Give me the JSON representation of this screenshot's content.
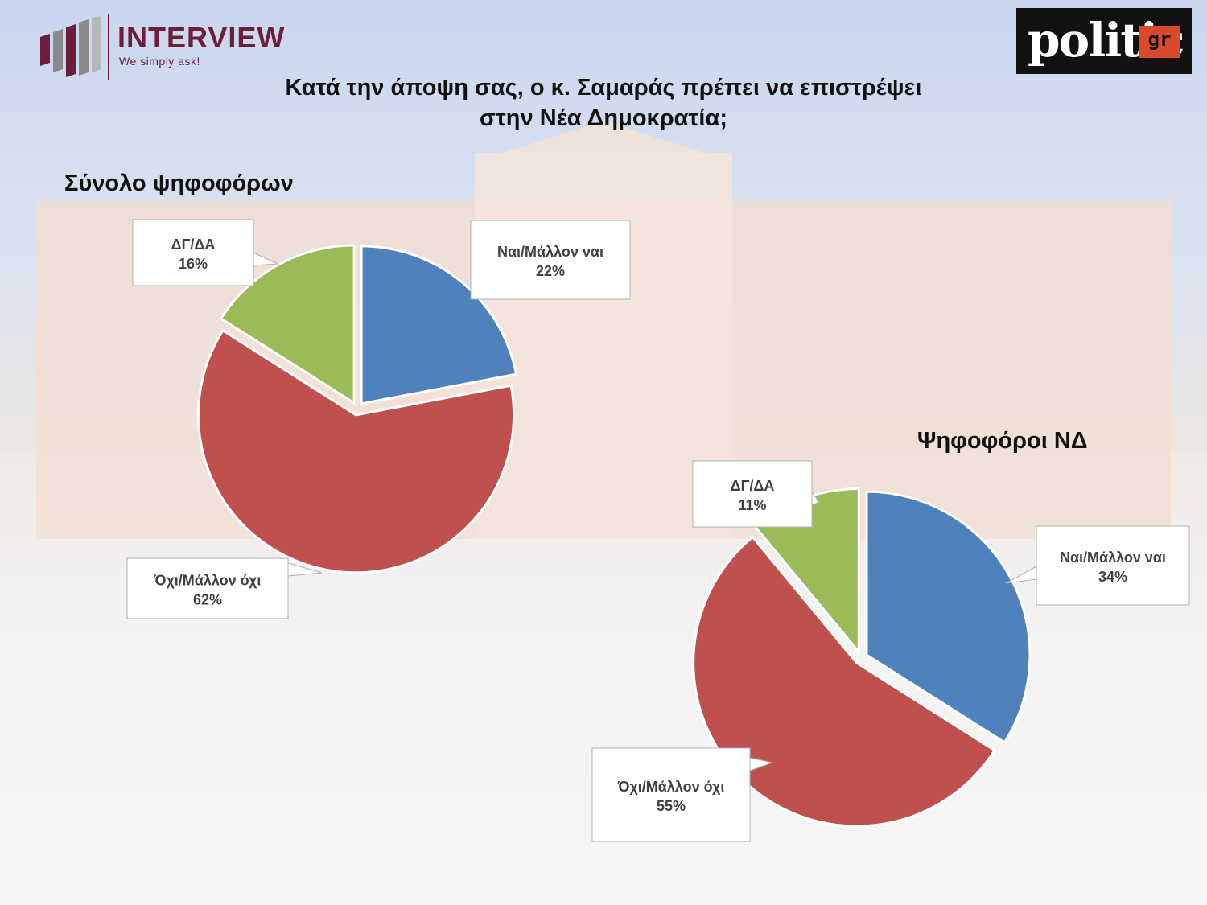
{
  "header": {
    "brand_name": "INTERVIEW",
    "brand_tagline": "We simply ask!",
    "partner_logo_text": "politic",
    "partner_logo_suffix": "gr",
    "question": "Κατά την άποψη σας, ο κ. Σαμαράς πρέπει να επιστρέψει στην Νέα Δημοκρατία;"
  },
  "colors": {
    "yes": "#4f81bd",
    "no": "#c0504d",
    "dk": "#9bbb59",
    "brand": "#6e1d3a"
  },
  "chart_data": [
    {
      "type": "pie",
      "title": "Σύνολο ψηφοφόρων",
      "labels": [
        "Ναι/Μάλλον ναι",
        "Όχι/Μάλλον όχι",
        "ΔΓ/ΔΑ"
      ],
      "values": [
        22,
        62,
        16
      ],
      "value_labels": [
        "22%",
        "62%",
        "16%"
      ],
      "colors": [
        "#4f81bd",
        "#c0504d",
        "#9bbb59"
      ]
    },
    {
      "type": "pie",
      "title": "Ψηφοφόροι ΝΔ",
      "labels": [
        "Ναι/Μάλλον ναι",
        "Όχι/Μάλλον όχι",
        "ΔΓ/ΔΑ"
      ],
      "values": [
        34,
        55,
        11
      ],
      "value_labels": [
        "34%",
        "55%",
        "11%"
      ],
      "colors": [
        "#4f81bd",
        "#c0504d",
        "#9bbb59"
      ]
    }
  ]
}
